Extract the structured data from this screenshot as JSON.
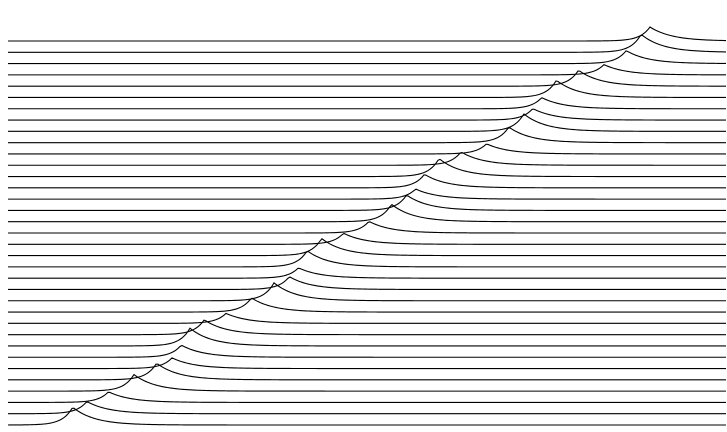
{
  "artwork": {
    "background": "#ffffff",
    "stroke_color": "#000000",
    "line_count": 35,
    "style": "stacked wave lines forming a diagonal ridge from bottom-left to top-right"
  }
}
